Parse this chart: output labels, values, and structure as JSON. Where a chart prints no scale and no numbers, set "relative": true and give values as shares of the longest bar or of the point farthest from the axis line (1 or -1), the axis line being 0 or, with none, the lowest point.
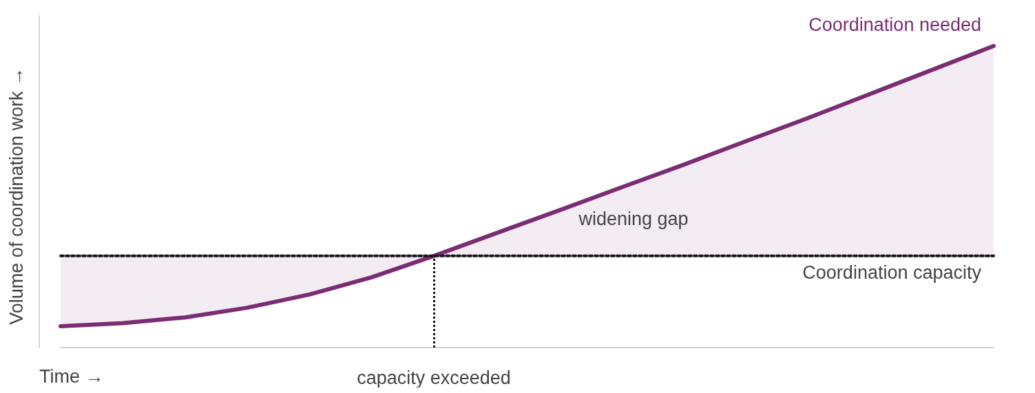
{
  "chart_data": {
    "type": "line",
    "relative": true,
    "xlabel": "Time →",
    "ylabel": "Volume of coordination work →",
    "grid": false,
    "legend": false,
    "marker": "none",
    "categories": [
      null,
      null,
      null,
      null,
      null,
      null,
      null,
      null,
      null,
      null,
      null,
      null,
      null,
      null,
      null,
      null
    ],
    "series": [
      {
        "name": "Coordination needed",
        "color": "#7b2d74",
        "values": [
          0.071,
          0.081,
          0.1,
          0.132,
          0.176,
          0.233,
          0.304,
          0.379,
          0.454,
          0.53,
          0.605,
          0.683,
          0.76,
          0.84,
          0.92,
          1
        ]
      },
      {
        "name": "Coordination capacity",
        "color": "#1e1220",
        "line_style": "dotted",
        "values": [
          0.304,
          0.304,
          0.304,
          0.304,
          0.304,
          0.304,
          0.304,
          0.304,
          0.304,
          0.304,
          0.304,
          0.304,
          0.304,
          0.304,
          0.304,
          0.304
        ]
      }
    ],
    "ref_lines": [
      {
        "axis": "x",
        "label": "capacity exceeded",
        "line_style": "dotted",
        "color": "#111111"
      }
    ],
    "annotations": [
      "widening gap"
    ]
  }
}
